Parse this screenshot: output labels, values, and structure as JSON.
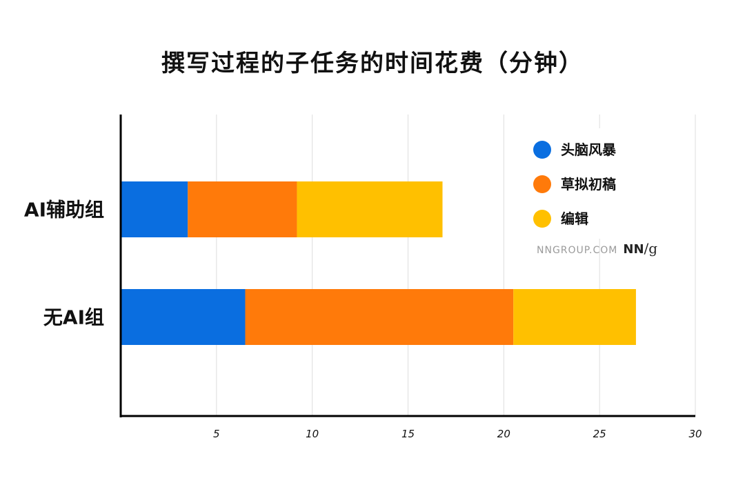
{
  "chart_data": {
    "type": "bar",
    "orientation": "horizontal",
    "stacked": true,
    "title": "撰写过程的子任务的时间花费（分钟）",
    "categories": [
      "AI辅助组",
      "无AI组"
    ],
    "series": [
      {
        "name": "头脑风暴",
        "color": "#0a6ee0",
        "values": [
          3.5,
          6.5
        ]
      },
      {
        "name": "草拟初稿",
        "color": "#ff7a0a",
        "values": [
          5.7,
          14.0
        ]
      },
      {
        "name": "编辑",
        "color": "#ffc000",
        "values": [
          7.6,
          6.4
        ]
      }
    ],
    "xticks": [
      5,
      10,
      15,
      20,
      25,
      30
    ],
    "xlim": [
      0,
      30
    ],
    "grid": true,
    "legend_position": "top-right"
  },
  "watermark": {
    "site": "NNGROUP.COM",
    "logo_text": "NN/g"
  }
}
